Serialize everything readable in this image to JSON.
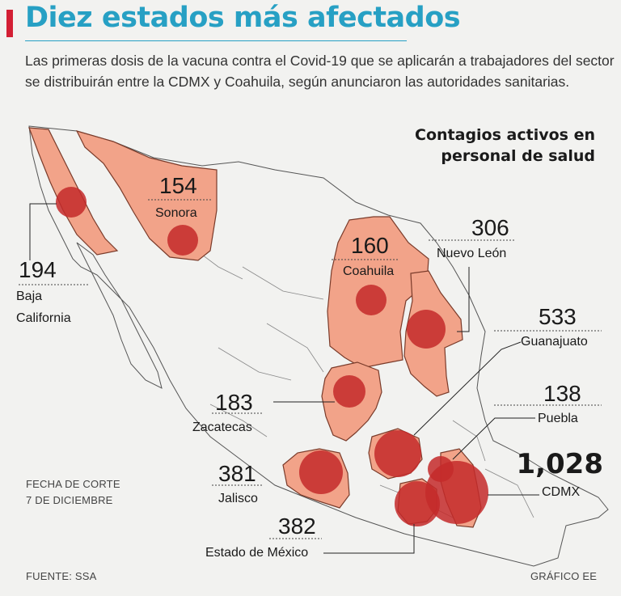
{
  "header": {
    "title": "Diez estados más afectados",
    "lede": "Las primeras dosis de la vacuna contra el Covid-19 que se aplicarán a trabajadores del sector se distribuirán entre la CDMX y Coahuila, según anunciaron las autoridades sanitarias."
  },
  "map_title": "Contagios activos en personal de salud",
  "colors": {
    "accent": "#27a0c4",
    "title_bar": "#d31f34",
    "state_fill": "#f2a389",
    "bubble": "#c42a2a"
  },
  "states": [
    {
      "name": "Baja California",
      "name_line1": "Baja",
      "name_line2": "California",
      "value": "194"
    },
    {
      "name": "Sonora",
      "value": "154"
    },
    {
      "name": "Coahuila",
      "value": "160"
    },
    {
      "name": "Nuevo León",
      "value": "306"
    },
    {
      "name": "Guanajuato",
      "value": "533"
    },
    {
      "name": "Zacatecas",
      "value": "183"
    },
    {
      "name": "Puebla",
      "value": "138"
    },
    {
      "name": "Jalisco",
      "value": "381"
    },
    {
      "name": "CDMX",
      "value": "1,028"
    },
    {
      "name": "Estado de México",
      "value": "382"
    }
  ],
  "footer": {
    "cutoff_line1": "FECHA DE CORTE",
    "cutoff_line2": "7 DE DICIEMBRE",
    "source": "FUENTE: SSA",
    "credit": "GRÁFICO EE"
  }
}
